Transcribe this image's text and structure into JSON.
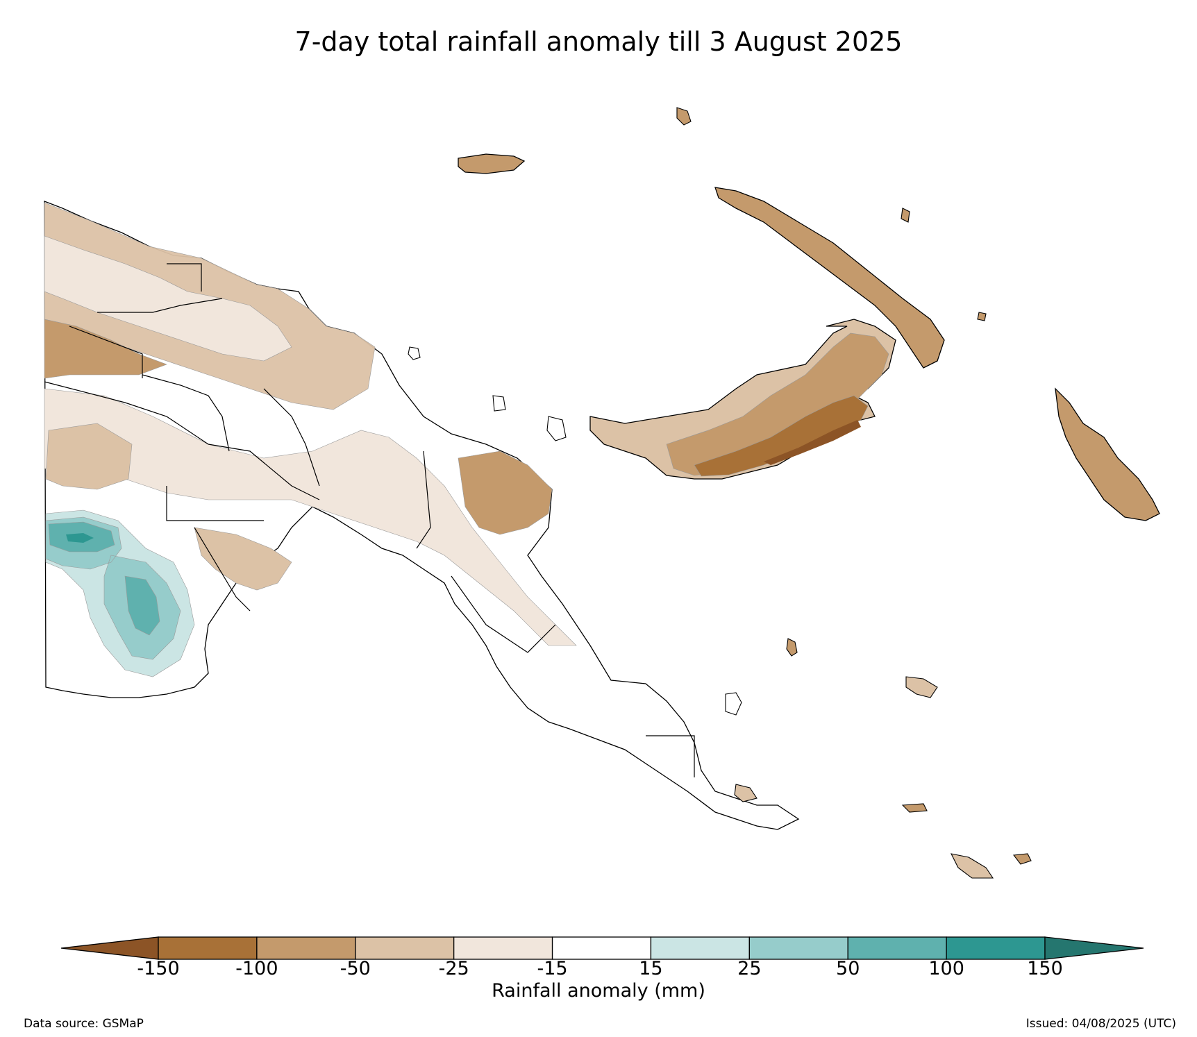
{
  "title": "7-day total rainfall anomaly till 3 August 2025",
  "colorbar": {
    "label": "Rainfall anomaly (mm)",
    "ticks": [
      "-150",
      "-100",
      "-50",
      "-25",
      "-15",
      "15",
      "25",
      "50",
      "100",
      "150"
    ],
    "colors": [
      "#8c5426",
      "#a87137",
      "#c49a6c",
      "#dcc2a6",
      "#f1e6dc",
      "#ffffff",
      "#cbe5e4",
      "#96cccb",
      "#5fb1ae",
      "#2d9791",
      "#25766f"
    ]
  },
  "footer": {
    "source": "Data source: GSMaP",
    "issued": "Issued: 04/08/2025 (UTC)"
  },
  "legend_classes": {
    "dry_strong": "#a87137",
    "dry_mid": "#c49a6c",
    "dry_light": "#dcc2a6",
    "dry_faint": "#f1e6dc",
    "wet_faint": "#cbe5e4",
    "wet_light": "#96cccb",
    "wet_mid": "#5fb1ae",
    "wet_strong": "#2d9791"
  }
}
